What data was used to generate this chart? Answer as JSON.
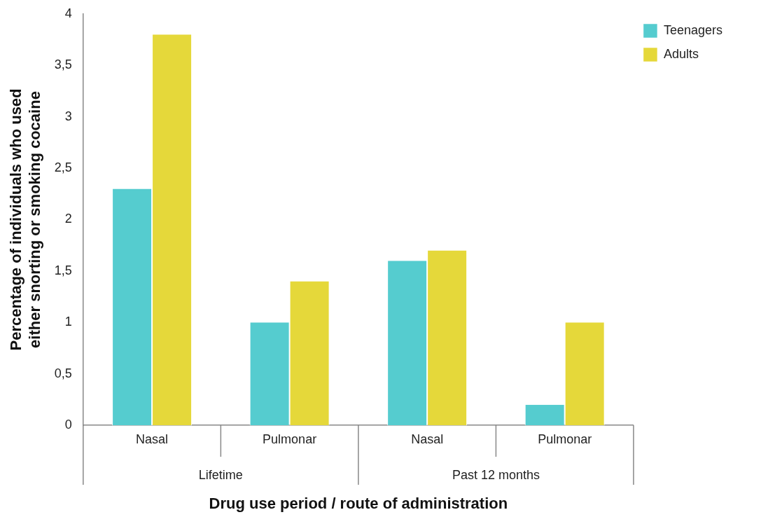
{
  "chart_data": {
    "type": "bar",
    "xlabel": "Drug use period / route of administration",
    "ylabel": "Percentage of individuals who used either snorting or smoking cocaine",
    "categories": [
      "Nasal",
      "Pulmonar",
      "Nasal",
      "Pulmonar"
    ],
    "annotations": [
      "Lifetime",
      "Past 12 months"
    ],
    "series": [
      {
        "name": "Teenagers",
        "color": "#55cccf",
        "values": [
          2.3,
          1.0,
          1.6,
          0.2
        ]
      },
      {
        "name": "Adults",
        "color": "#e5d83a",
        "values": [
          3.8,
          1.4,
          1.7,
          1.0
        ]
      }
    ],
    "ylim": [
      0,
      4
    ],
    "yticks": [
      0,
      {
        "value": 0.5,
        "label": "0,5"
      },
      1,
      {
        "value": 1.5,
        "label": "1,5"
      },
      2,
      {
        "value": 2.5,
        "label": "2,5"
      },
      3,
      {
        "value": 3.5,
        "label": "3,5"
      },
      4
    ],
    "grid": false,
    "legend": "right"
  }
}
